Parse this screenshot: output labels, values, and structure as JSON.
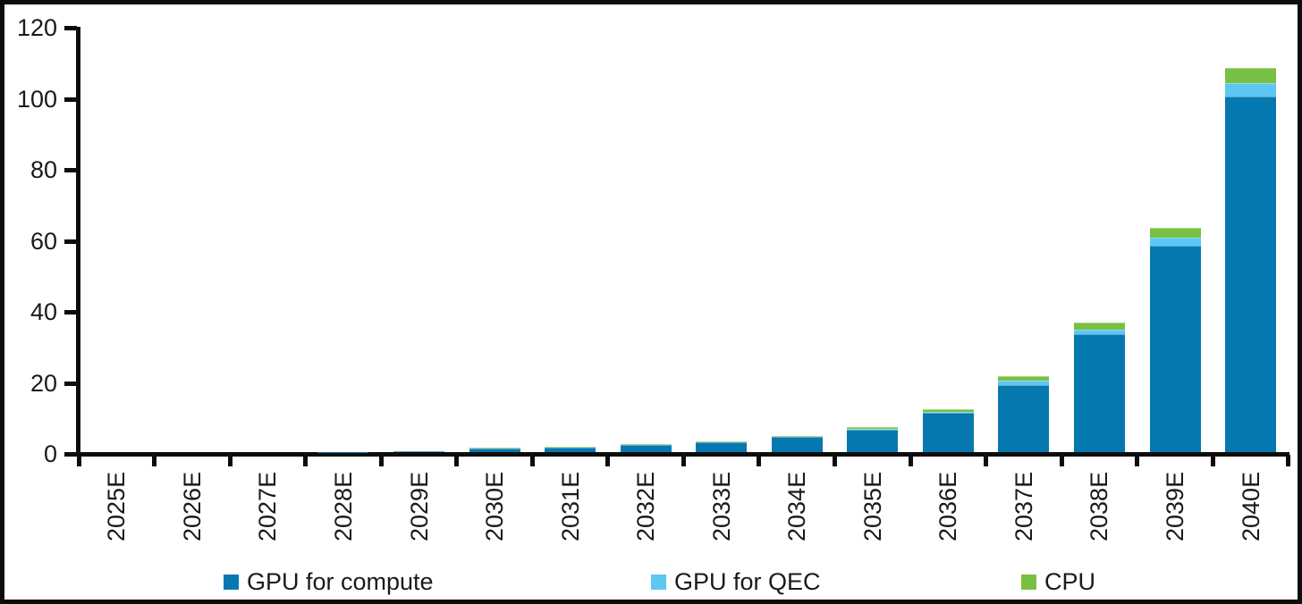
{
  "chart_data": {
    "type": "bar",
    "stacked": true,
    "title": "",
    "xlabel": "",
    "ylabel": "",
    "ylim": [
      0,
      120
    ],
    "ytick_step": 20,
    "y_ticks": [
      0,
      20,
      40,
      60,
      80,
      100,
      120
    ],
    "grid": false,
    "legend_position": "bottom",
    "categories": [
      "2025E",
      "2026E",
      "2027E",
      "2028E",
      "2029E",
      "2030E",
      "2031E",
      "2032E",
      "2033E",
      "2034E",
      "2035E",
      "2036E",
      "2037E",
      "2038E",
      "2039E",
      "2040E"
    ],
    "series": [
      {
        "name": "GPU for compute",
        "color": "#0678b0",
        "values": [
          0,
          0,
          0,
          0.05,
          0.2,
          1.05,
          1.3,
          2.0,
          2.65,
          4.2,
          6.3,
          11.0,
          18.9,
          33.2,
          58.0,
          100.0
        ]
      },
      {
        "name": "GPU for QEC",
        "color": "#5dc6f2",
        "values": [
          0,
          0,
          0,
          0,
          0,
          0,
          0,
          0.05,
          0.05,
          0.1,
          0.2,
          0.3,
          1.1,
          1.3,
          2.3,
          3.8
        ]
      },
      {
        "name": "CPU",
        "color": "#78c044",
        "values": [
          0,
          0,
          0,
          0,
          0.15,
          0.15,
          0.2,
          0.2,
          0.3,
          0.3,
          0.5,
          0.7,
          1.3,
          1.9,
          2.8,
          4.4
        ]
      }
    ]
  }
}
